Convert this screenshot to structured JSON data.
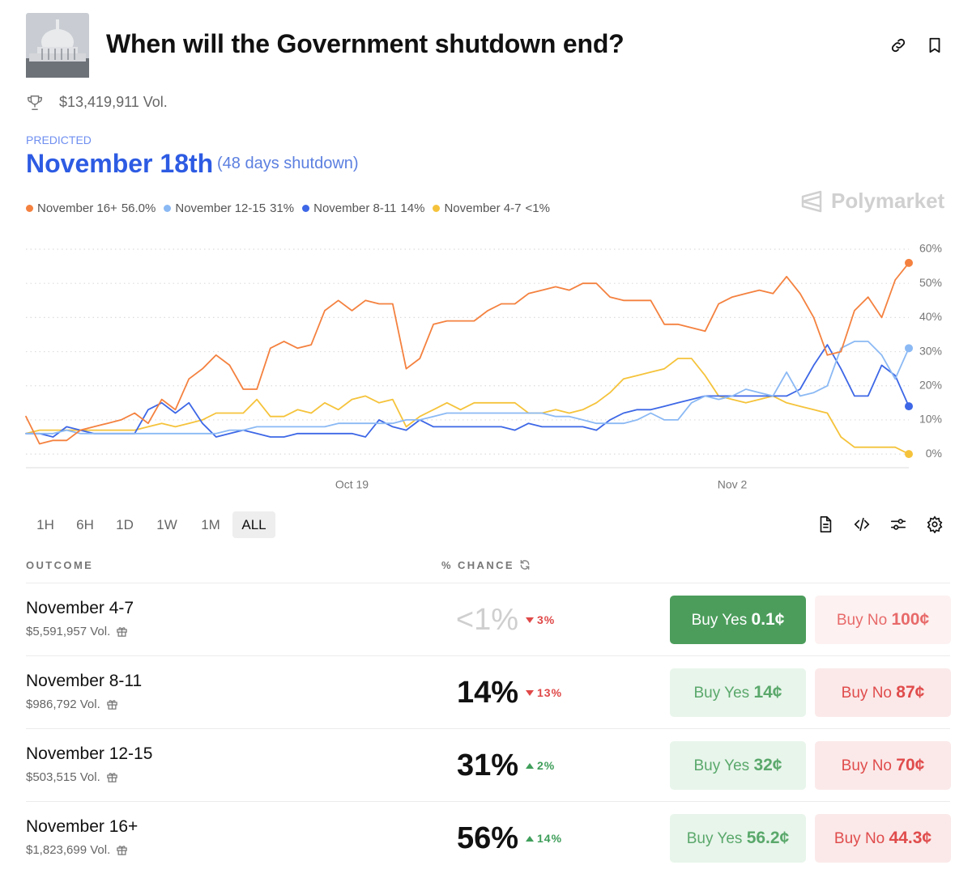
{
  "header": {
    "title": "When will the Government shutdown end?",
    "volume": "$13,419,911 Vol."
  },
  "prediction": {
    "label": "PREDICTED",
    "date": "November 18th",
    "detail": "(48 days shutdown)"
  },
  "watermark": "Polymarket",
  "chart_data": {
    "type": "line",
    "categories": [
      null,
      null,
      null,
      null,
      null,
      null,
      null,
      null,
      null,
      null,
      null,
      null,
      null,
      null,
      null,
      null,
      null,
      null,
      null,
      null,
      null,
      null,
      null,
      null,
      "Oct 19",
      null,
      null,
      null,
      null,
      null,
      null,
      null,
      null,
      null,
      null,
      null,
      null,
      null,
      null,
      null,
      null,
      null,
      null,
      null,
      null,
      null,
      null,
      null,
      null,
      null,
      null,
      null,
      "Nov 2",
      null,
      null,
      null,
      null,
      null,
      null,
      null,
      null,
      null,
      null,
      null,
      null,
      null
    ],
    "series": [
      {
        "name": "November 16+",
        "legend_value": "56.0%",
        "color": "#f4813f",
        "values": [
          11,
          3,
          4,
          4,
          7,
          8,
          9,
          10,
          12,
          9,
          16,
          13,
          22,
          25,
          29,
          26,
          19,
          19,
          31,
          33,
          31,
          32,
          42,
          45,
          42,
          45,
          44,
          44,
          25,
          28,
          38,
          39,
          39,
          39,
          42,
          44,
          44,
          47,
          48,
          49,
          48,
          50,
          50,
          46,
          45,
          45,
          45,
          38,
          38,
          37,
          36,
          44,
          46,
          47,
          48,
          47,
          52,
          47,
          40,
          29,
          30,
          42,
          46,
          40,
          51,
          56
        ]
      },
      {
        "name": "November 12-15",
        "legend_value": "31%",
        "color": "#8bb9f4",
        "values": [
          6,
          6,
          6,
          7,
          6,
          6,
          6,
          6,
          6,
          6,
          6,
          6,
          6,
          6,
          6,
          7,
          7,
          8,
          8,
          8,
          8,
          8,
          8,
          9,
          9,
          9,
          9,
          9,
          10,
          10,
          11,
          12,
          12,
          12,
          12,
          12,
          12,
          12,
          12,
          11,
          11,
          10,
          9,
          9,
          9,
          10,
          12,
          10,
          10,
          15,
          17,
          16,
          17,
          19,
          18,
          17,
          24,
          17,
          18,
          20,
          31,
          33,
          33,
          29,
          22,
          31
        ]
      },
      {
        "name": "November 8-11",
        "legend_value": "14%",
        "color": "#3d67e6",
        "values": [
          6,
          6,
          5,
          8,
          7,
          6,
          6,
          6,
          6,
          13,
          15,
          12,
          15,
          9,
          5,
          6,
          7,
          6,
          5,
          5,
          6,
          6,
          6,
          6,
          6,
          5,
          10,
          8,
          7,
          10,
          8,
          8,
          8,
          8,
          8,
          8,
          7,
          9,
          8,
          8,
          8,
          8,
          7,
          10,
          12,
          13,
          13,
          14,
          15,
          16,
          17,
          17,
          17,
          17,
          17,
          17,
          17,
          19,
          26,
          32,
          25,
          17,
          17,
          26,
          23,
          14
        ]
      },
      {
        "name": "November 4-7",
        "legend_value": "<1%",
        "color": "#f5c33b",
        "values": [
          6,
          7,
          7,
          7,
          7,
          7,
          7,
          7,
          7,
          8,
          9,
          8,
          9,
          10,
          12,
          12,
          12,
          16,
          11,
          11,
          13,
          12,
          15,
          13,
          16,
          17,
          15,
          16,
          8,
          11,
          13,
          15,
          13,
          15,
          15,
          15,
          15,
          12,
          12,
          13,
          12,
          13,
          15,
          18,
          22,
          23,
          24,
          25,
          28,
          28,
          23,
          17,
          16,
          15,
          16,
          17,
          15,
          14,
          13,
          12,
          5,
          2,
          2,
          2,
          2,
          0
        ]
      }
    ],
    "ylim": [
      -4,
      60
    ],
    "yticks": [
      {
        "value": 0,
        "label": "0%"
      },
      {
        "value": 10,
        "label": "10%"
      },
      {
        "value": 20,
        "label": "20%"
      },
      {
        "value": 30,
        "label": "30%"
      },
      {
        "value": 40,
        "label": "40%"
      },
      {
        "value": 50,
        "label": "50%"
      },
      {
        "value": 60,
        "label": "60%"
      }
    ],
    "grid": true
  },
  "time_ranges": [
    "1H",
    "6H",
    "1D",
    "1W",
    "1M",
    "ALL"
  ],
  "table": {
    "headers": [
      "OUTCOME",
      "% CHANCE"
    ],
    "rows": [
      {
        "name": "November 4-7",
        "volume": "$5,591,957 Vol.",
        "chance": "<1%",
        "change": "3%",
        "trend": "down",
        "yes_label": "Buy Yes",
        "yes_price": "0.1¢",
        "no_label": "Buy No",
        "no_price": "100¢"
      },
      {
        "name": "November 8-11",
        "volume": "$986,792 Vol.",
        "chance": "14%",
        "change": "13%",
        "trend": "down",
        "yes_label": "Buy Yes",
        "yes_price": "14¢",
        "no_label": "Buy No",
        "no_price": "87¢"
      },
      {
        "name": "November 12-15",
        "volume": "$503,515 Vol.",
        "chance": "31%",
        "change": "2%",
        "trend": "up",
        "yes_label": "Buy Yes",
        "yes_price": "32¢",
        "no_label": "Buy No",
        "no_price": "70¢"
      },
      {
        "name": "November 16+",
        "volume": "$1,823,699 Vol.",
        "chance": "56%",
        "change": "14%",
        "trend": "up",
        "yes_label": "Buy Yes",
        "yes_price": "56.2¢",
        "no_label": "Buy No",
        "no_price": "44.3¢"
      }
    ]
  }
}
